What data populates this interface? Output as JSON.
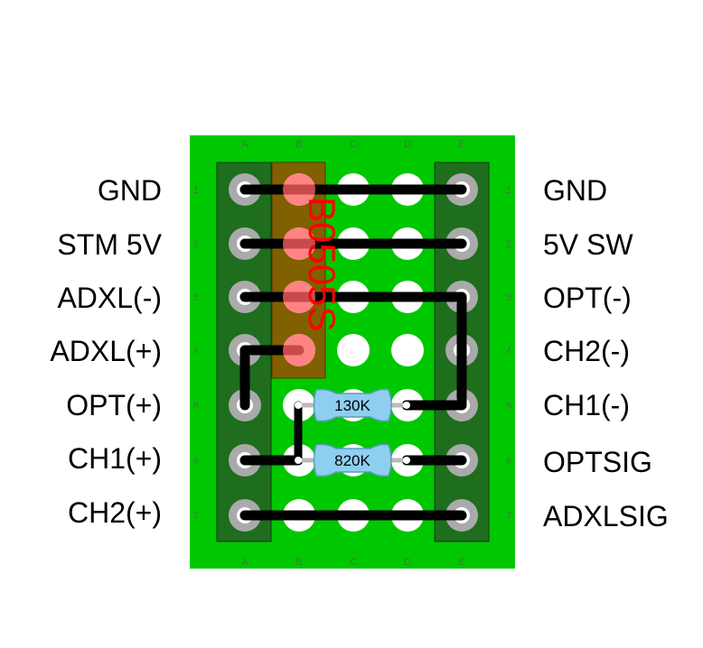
{
  "board": {
    "column_labels": [
      "A",
      "B",
      "C",
      "D",
      "E"
    ],
    "row_labels": [
      "1",
      "2",
      "3",
      "4",
      "5",
      "6",
      "7"
    ]
  },
  "left_labels": [
    "GND",
    "STM 5V",
    "ADXL(-)",
    "ADXL(+)",
    "OPT(+)",
    "CH1(+)",
    "CH2(+)"
  ],
  "right_labels": [
    "GND",
    "5V SW",
    "OPT(-)",
    "CH2(-)",
    "CH1(-)",
    "OPTSIG",
    "ADXLSIG"
  ],
  "chip": {
    "label": "B0505S"
  },
  "resistors": [
    {
      "value": "130K"
    },
    {
      "value": "820K"
    }
  ],
  "colors": {
    "board": "#00c800",
    "rail": "#1e6e1e",
    "chip": "#806000",
    "chip_pad": "#ff8080",
    "wire": "#000000",
    "resistor": "#8ecff0"
  }
}
